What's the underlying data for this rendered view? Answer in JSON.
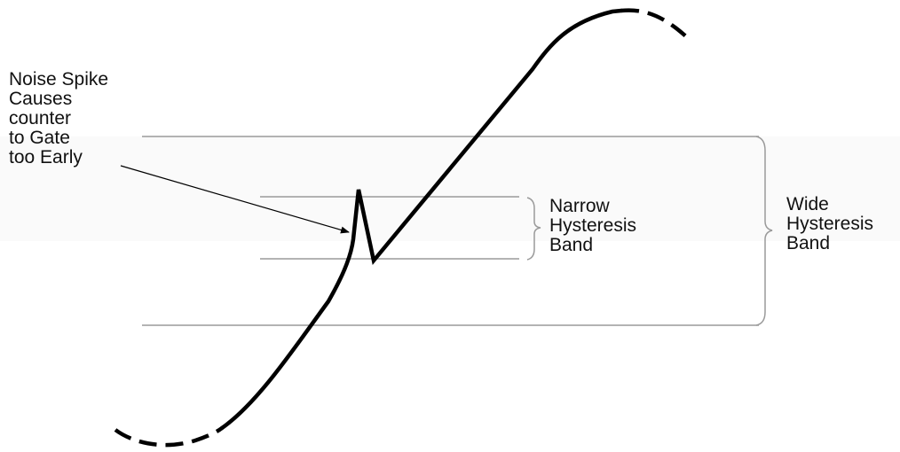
{
  "labels": {
    "noise_spike": "Noise Spike\nCauses\ncounter\nto Gate\ntoo Early",
    "narrow_band": "Narrow\nHysteresis\nBand",
    "wide_band": "Wide\nHysteresis\nBand"
  },
  "colors": {
    "waveform": "#000000",
    "band_lines": "#9a9a9a",
    "text": "#111111"
  }
}
